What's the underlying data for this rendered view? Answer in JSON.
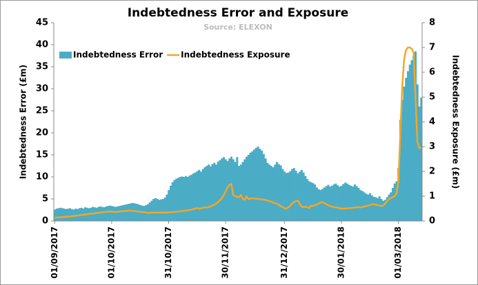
{
  "chart_data": {
    "type": "bar_line",
    "title": "Indebtedness Error and Exposure",
    "subtitle": "Source: ELEXON",
    "y_label": "Indebtedness Error (£m)",
    "y2_label": "Indebtedness Exposure (£m)",
    "legend": "top-left",
    "categories": [
      "01/09/2017",
      null,
      null,
      null,
      null,
      null,
      null,
      null,
      null,
      null,
      null,
      null,
      null,
      null,
      null,
      null,
      null,
      null,
      null,
      null,
      null,
      null,
      null,
      null,
      null,
      null,
      null,
      null,
      null,
      null,
      "01/10/2017",
      null,
      null,
      null,
      null,
      null,
      null,
      null,
      null,
      null,
      null,
      null,
      null,
      null,
      null,
      null,
      null,
      null,
      null,
      null,
      null,
      null,
      null,
      null,
      null,
      null,
      null,
      null,
      null,
      null,
      "31/10/2017",
      null,
      null,
      null,
      null,
      null,
      null,
      null,
      null,
      null,
      null,
      null,
      null,
      null,
      null,
      null,
      null,
      null,
      null,
      null,
      null,
      null,
      null,
      null,
      null,
      null,
      null,
      null,
      null,
      null,
      "30/11/2017",
      null,
      null,
      null,
      null,
      null,
      null,
      null,
      null,
      null,
      null,
      null,
      null,
      null,
      null,
      null,
      null,
      null,
      null,
      null,
      null,
      null,
      null,
      null,
      null,
      null,
      null,
      null,
      null,
      null,
      null,
      "31/12/2017",
      null,
      null,
      null,
      null,
      null,
      null,
      null,
      null,
      null,
      null,
      null,
      null,
      null,
      null,
      null,
      null,
      null,
      null,
      null,
      null,
      null,
      null,
      null,
      null,
      null,
      null,
      null,
      null,
      null,
      "30/01/2018",
      null,
      null,
      null,
      null,
      null,
      null,
      null,
      null,
      null,
      null,
      null,
      null,
      null,
      null,
      null,
      null,
      null,
      null,
      null,
      null,
      null,
      null,
      null,
      null,
      null,
      null,
      null,
      null,
      null,
      "01/03/2018",
      null,
      null,
      null,
      null,
      null,
      null,
      null,
      null,
      null,
      null,
      null,
      null
    ],
    "series": [
      {
        "name": "Indebtedness Error",
        "type": "bar",
        "color": "#4bacc6",
        "values": [
          2.6,
          2.8,
          2.9,
          3.0,
          2.9,
          2.8,
          2.7,
          2.8,
          2.9,
          2.7,
          2.6,
          2.8,
          2.7,
          2.9,
          3.0,
          2.8,
          3.1,
          3.0,
          2.9,
          3.0,
          3.2,
          3.1,
          3.0,
          3.2,
          3.3,
          3.2,
          3.1,
          3.3,
          3.4,
          3.5,
          3.4,
          3.3,
          3.2,
          3.3,
          3.4,
          3.5,
          3.6,
          3.7,
          3.8,
          3.9,
          4.0,
          4.1,
          4.0,
          3.9,
          3.8,
          3.6,
          3.5,
          3.4,
          3.6,
          3.8,
          4.2,
          4.6,
          5.0,
          5.2,
          5.0,
          4.8,
          4.9,
          5.0,
          5.3,
          6.0,
          7.0,
          8.0,
          8.8,
          9.3,
          9.6,
          9.8,
          10.0,
          10.1,
          10.0,
          10.2,
          10.0,
          10.3,
          10.5,
          10.8,
          11.0,
          11.3,
          11.6,
          11.2,
          11.8,
          12.2,
          12.5,
          12.8,
          12.4,
          12.9,
          13.2,
          12.8,
          13.5,
          13.8,
          14.2,
          14.5,
          14.0,
          13.6,
          14.2,
          14.6,
          14.0,
          13.4,
          14.5,
          12.5,
          12.8,
          13.4,
          14.0,
          14.6,
          15.0,
          15.5,
          15.8,
          16.2,
          16.6,
          16.9,
          16.4,
          16.0,
          15.2,
          14.2,
          13.2,
          12.8,
          12.5,
          12.2,
          12.8,
          13.4,
          12.9,
          12.6,
          11.8,
          11.2,
          10.9,
          11.0,
          11.3,
          11.8,
          12.0,
          11.4,
          10.8,
          11.2,
          11.6,
          11.0,
          10.2,
          9.5,
          9.0,
          8.8,
          8.6,
          8.3,
          7.6,
          7.2,
          7.0,
          7.3,
          7.6,
          7.9,
          8.2,
          7.8,
          8.0,
          8.3,
          8.5,
          8.1,
          7.8,
          8.0,
          8.4,
          8.7,
          8.5,
          8.2,
          8.0,
          7.8,
          8.3,
          7.9,
          7.5,
          7.0,
          6.8,
          6.5,
          6.2,
          6.0,
          6.3,
          5.8,
          5.5,
          5.4,
          5.2,
          5.6,
          5.0,
          4.6,
          4.8,
          5.4,
          6.0,
          6.5,
          7.5,
          8.5,
          9.0,
          12.0,
          23.0,
          27.5,
          30.5,
          32.5,
          34.0,
          35.5,
          36.5,
          37.5,
          38.5,
          31.0,
          26.0,
          28.0
        ]
      },
      {
        "name": "Indebtedness Exposure",
        "type": "line",
        "axis": "y2",
        "color": "#f5a623",
        "values": [
          0.12,
          0.14,
          0.15,
          0.15,
          0.16,
          0.17,
          0.17,
          0.18,
          0.18,
          0.19,
          0.2,
          0.21,
          0.22,
          0.23,
          0.24,
          0.25,
          0.26,
          0.27,
          0.28,
          0.29,
          0.3,
          0.31,
          0.32,
          0.33,
          0.34,
          0.35,
          0.36,
          0.37,
          0.38,
          0.38,
          0.38,
          0.37,
          0.36,
          0.37,
          0.38,
          0.39,
          0.4,
          0.4,
          0.41,
          0.42,
          0.42,
          0.41,
          0.4,
          0.39,
          0.38,
          0.37,
          0.36,
          0.35,
          0.34,
          0.33,
          0.33,
          0.34,
          0.34,
          0.34,
          0.34,
          0.34,
          0.34,
          0.34,
          0.34,
          0.34,
          0.35,
          0.35,
          0.36,
          0.36,
          0.37,
          0.38,
          0.39,
          0.4,
          0.41,
          0.42,
          0.43,
          0.44,
          0.46,
          0.48,
          0.5,
          0.52,
          0.5,
          0.51,
          0.53,
          0.55,
          0.54,
          0.56,
          0.58,
          0.62,
          0.66,
          0.7,
          0.76,
          0.84,
          0.92,
          1.05,
          1.2,
          1.35,
          1.45,
          1.5,
          1.05,
          1.0,
          0.98,
          0.95,
          1.05,
          0.9,
          0.85,
          1.0,
          0.88,
          0.9,
          0.92,
          0.9,
          0.9,
          0.89,
          0.88,
          0.87,
          0.86,
          0.85,
          0.83,
          0.8,
          0.78,
          0.75,
          0.72,
          0.7,
          0.65,
          0.6,
          0.56,
          0.52,
          0.5,
          0.55,
          0.62,
          0.7,
          0.76,
          0.8,
          0.82,
          0.7,
          0.58,
          0.56,
          0.58,
          0.55,
          0.52,
          0.62,
          0.6,
          0.64,
          0.66,
          0.7,
          0.74,
          0.76,
          0.72,
          0.68,
          0.64,
          0.6,
          0.58,
          0.56,
          0.55,
          0.54,
          0.52,
          0.5,
          0.5,
          0.5,
          0.51,
          0.52,
          0.52,
          0.53,
          0.54,
          0.55,
          0.56,
          0.55,
          0.56,
          0.58,
          0.6,
          0.62,
          0.64,
          0.66,
          0.68,
          0.66,
          0.64,
          0.62,
          0.6,
          0.62,
          0.7,
          0.8,
          0.88,
          0.92,
          0.96,
          1.0,
          1.1,
          1.6,
          3.5,
          5.4,
          6.5,
          6.9,
          7.0,
          7.0,
          6.95,
          6.8,
          5.0,
          3.2,
          2.95,
          2.95
        ]
      }
    ],
    "ylim": [
      0,
      45
    ],
    "yticks": [
      0,
      5,
      10,
      15,
      20,
      25,
      30,
      35,
      40,
      45
    ],
    "y2lim": [
      0,
      8
    ],
    "y2ticks": [
      0,
      1,
      2,
      3,
      4,
      5,
      6,
      7,
      8
    ]
  }
}
